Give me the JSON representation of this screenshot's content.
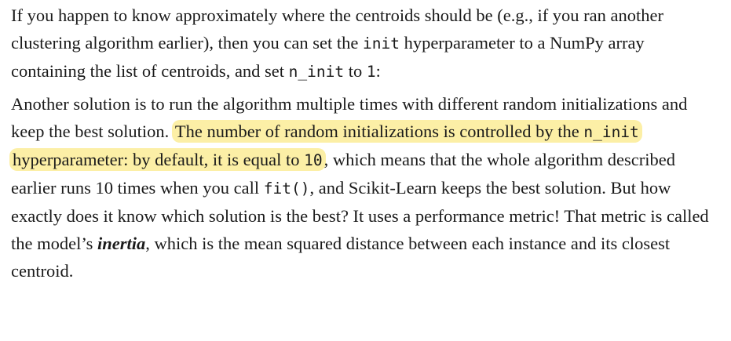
{
  "paragraph1": {
    "t1": "If you happen to know approximately where the centroids should be (e.g., if you ran another clustering algorithm earlier), then you can set the ",
    "c1": "init",
    "t2": " hyperparameter to a NumPy array containing the list of centroids, and set ",
    "c2": "n_init",
    "t3": " to ",
    "c3": "1",
    "t4": ":"
  },
  "paragraph2": {
    "t1": "Another solution is to run the algorithm multiple times with different random initializations and keep the best solution.",
    "h1": "The number of random initializations is controlled by the ",
    "c1": "n_init",
    "h2": " hyperparameter: by default, it is equal to ",
    "c2": "10",
    "t2": ", which means that the whole algorithm described earlier runs 10 times when you call ",
    "c3": "fit()",
    "t3": ", and Scikit-Learn keeps the best solution. But how exactly does it know which solution is the best? It uses a performance metric! That metric is called the model’s ",
    "term": "inertia",
    "t4": ", which is the mean squared distance between each instance and its closest centroid."
  },
  "colors": {
    "highlight": "#fcefa6",
    "text": "#1a1a1a"
  }
}
